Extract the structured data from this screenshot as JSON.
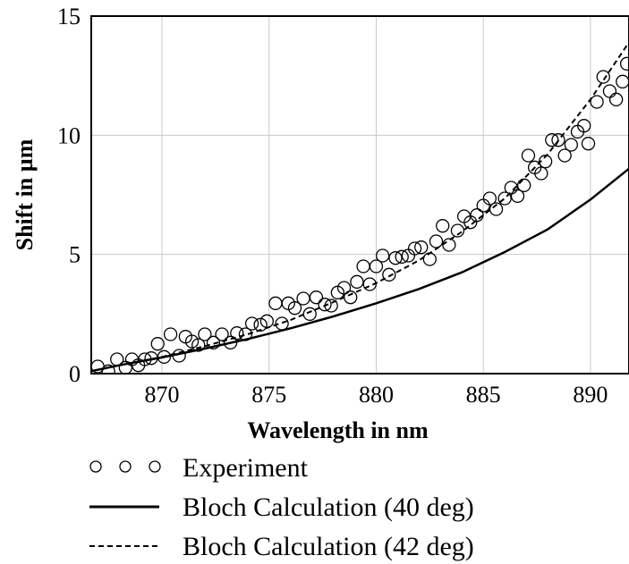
{
  "chart_data": {
    "type": "scatter",
    "xlabel": "Wavelength in nm",
    "ylabel": "Shift in µm",
    "xlim": [
      866.7,
      891.8
    ],
    "ylim": [
      0,
      15
    ],
    "xticks": [
      870,
      875,
      880,
      885,
      890
    ],
    "yticks": [
      0,
      5,
      10,
      15
    ],
    "grid": true,
    "legend_position": "below",
    "series": [
      {
        "name": "Experiment",
        "style": "open-circle",
        "color": "#000000",
        "points": [
          [
            867.0,
            0.3
          ],
          [
            867.5,
            0.1
          ],
          [
            867.9,
            0.6
          ],
          [
            868.3,
            0.25
          ],
          [
            868.6,
            0.6
          ],
          [
            868.9,
            0.35
          ],
          [
            869.2,
            0.6
          ],
          [
            869.5,
            0.65
          ],
          [
            869.8,
            1.25
          ],
          [
            870.1,
            0.7
          ],
          [
            870.4,
            1.65
          ],
          [
            870.8,
            0.75
          ],
          [
            871.1,
            1.55
          ],
          [
            871.4,
            1.35
          ],
          [
            871.7,
            1.2
          ],
          [
            872.0,
            1.65
          ],
          [
            872.4,
            1.3
          ],
          [
            872.8,
            1.65
          ],
          [
            873.2,
            1.3
          ],
          [
            873.5,
            1.7
          ],
          [
            873.9,
            1.65
          ],
          [
            874.2,
            2.1
          ],
          [
            874.6,
            2.05
          ],
          [
            874.9,
            2.2
          ],
          [
            875.3,
            2.95
          ],
          [
            875.6,
            2.1
          ],
          [
            875.9,
            2.95
          ],
          [
            876.2,
            2.75
          ],
          [
            876.6,
            3.15
          ],
          [
            876.9,
            2.5
          ],
          [
            877.2,
            3.2
          ],
          [
            877.6,
            2.9
          ],
          [
            877.9,
            2.85
          ],
          [
            878.2,
            3.4
          ],
          [
            878.5,
            3.6
          ],
          [
            878.8,
            3.2
          ],
          [
            879.1,
            3.85
          ],
          [
            879.4,
            4.5
          ],
          [
            879.7,
            3.75
          ],
          [
            880.0,
            4.5
          ],
          [
            880.3,
            4.95
          ],
          [
            880.6,
            4.15
          ],
          [
            880.9,
            4.85
          ],
          [
            881.2,
            4.9
          ],
          [
            881.5,
            4.95
          ],
          [
            881.8,
            5.25
          ],
          [
            882.1,
            5.3
          ],
          [
            882.5,
            4.8
          ],
          [
            882.8,
            5.55
          ],
          [
            883.1,
            6.2
          ],
          [
            883.4,
            5.4
          ],
          [
            883.8,
            6.0
          ],
          [
            884.1,
            6.6
          ],
          [
            884.4,
            6.35
          ],
          [
            884.7,
            6.65
          ],
          [
            885.0,
            7.05
          ],
          [
            885.3,
            7.35
          ],
          [
            885.6,
            6.9
          ],
          [
            886.0,
            7.35
          ],
          [
            886.3,
            7.8
          ],
          [
            886.6,
            7.45
          ],
          [
            886.9,
            7.9
          ],
          [
            887.1,
            9.15
          ],
          [
            887.4,
            8.65
          ],
          [
            887.7,
            8.4
          ],
          [
            887.9,
            8.9
          ],
          [
            888.2,
            9.8
          ],
          [
            888.5,
            9.8
          ],
          [
            888.8,
            9.15
          ],
          [
            889.1,
            9.6
          ],
          [
            889.4,
            10.15
          ],
          [
            889.7,
            10.4
          ],
          [
            889.9,
            9.65
          ],
          [
            890.3,
            11.4
          ],
          [
            890.6,
            12.45
          ],
          [
            890.9,
            11.85
          ],
          [
            891.2,
            11.5
          ],
          [
            891.5,
            12.25
          ],
          [
            891.7,
            13.0
          ]
        ]
      },
      {
        "name": "Bloch Calculation (40 deg)",
        "style": "solid-line",
        "color": "#000000",
        "points": [
          [
            866.7,
            0.1
          ],
          [
            868,
            0.35
          ],
          [
            870,
            0.68
          ],
          [
            872,
            1.05
          ],
          [
            874,
            1.45
          ],
          [
            876,
            1.9
          ],
          [
            878,
            2.4
          ],
          [
            880,
            2.95
          ],
          [
            882,
            3.55
          ],
          [
            884,
            4.25
          ],
          [
            886,
            5.1
          ],
          [
            888,
            6.05
          ],
          [
            890,
            7.3
          ],
          [
            891.8,
            8.6
          ]
        ]
      },
      {
        "name": "Bloch Calculation (42 deg)",
        "style": "dashed-line",
        "color": "#000000",
        "points": [
          [
            866.7,
            0.1
          ],
          [
            868,
            0.35
          ],
          [
            870,
            0.7
          ],
          [
            872,
            1.15
          ],
          [
            874,
            1.65
          ],
          [
            876,
            2.25
          ],
          [
            878,
            3.0
          ],
          [
            880,
            3.8
          ],
          [
            882,
            4.75
          ],
          [
            884,
            5.95
          ],
          [
            886,
            7.35
          ],
          [
            888,
            9.2
          ],
          [
            890,
            11.5
          ],
          [
            891.8,
            13.9
          ]
        ]
      }
    ]
  }
}
